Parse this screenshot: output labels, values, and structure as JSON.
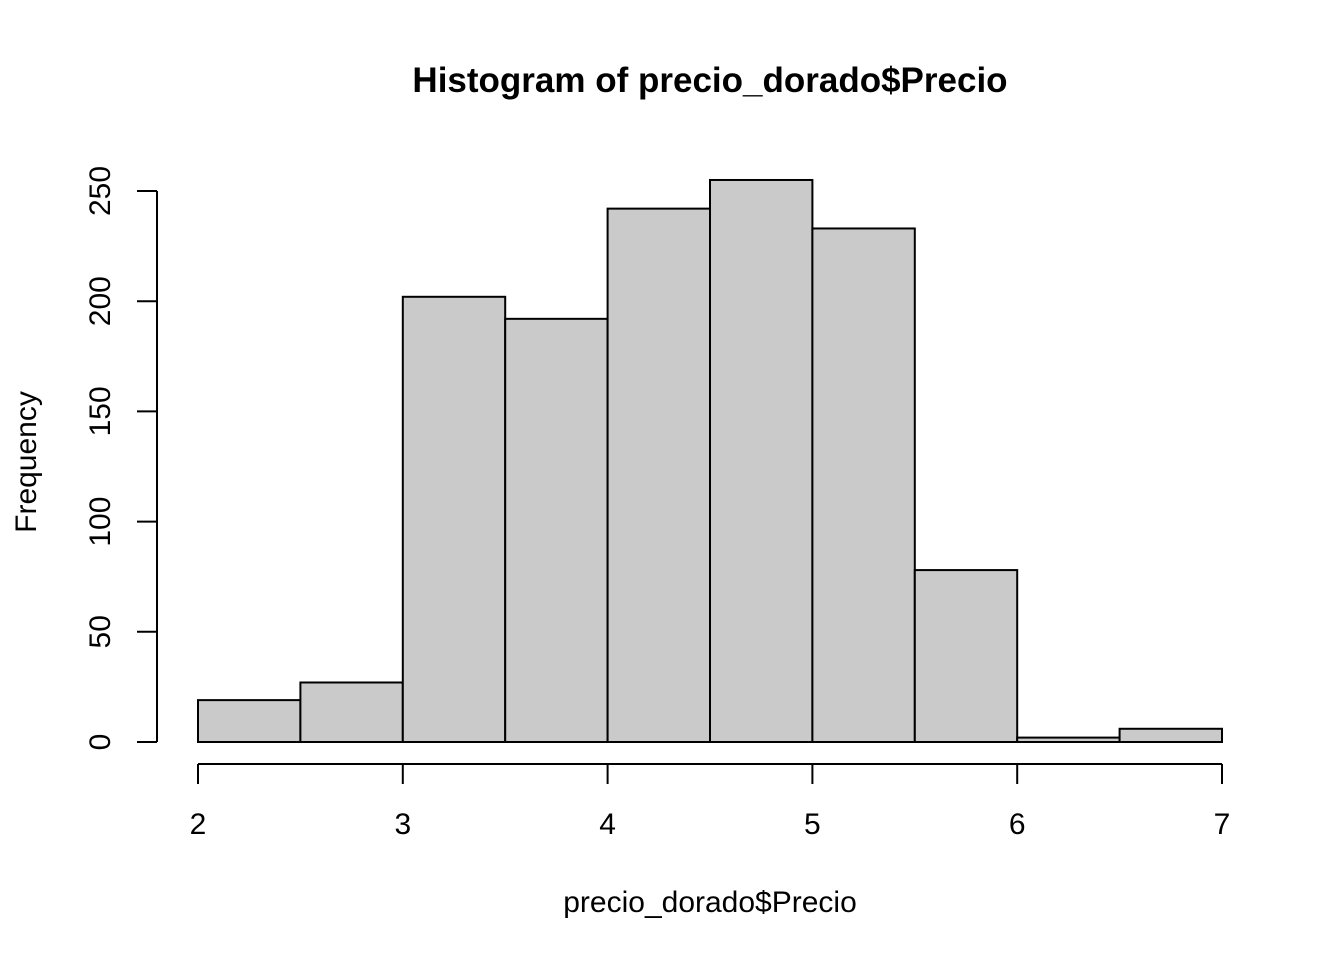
{
  "chart_data": {
    "type": "bar",
    "subtype": "histogram",
    "title": "Histogram of precio_dorado$Precio",
    "xlabel": "precio_dorado$Precio",
    "ylabel": "Frequency",
    "bins": [
      {
        "start": 2.0,
        "end": 2.5,
        "count": 19
      },
      {
        "start": 2.5,
        "end": 3.0,
        "count": 27
      },
      {
        "start": 3.0,
        "end": 3.5,
        "count": 202
      },
      {
        "start": 3.5,
        "end": 4.0,
        "count": 192
      },
      {
        "start": 4.0,
        "end": 4.5,
        "count": 242
      },
      {
        "start": 4.5,
        "end": 5.0,
        "count": 255
      },
      {
        "start": 5.0,
        "end": 5.5,
        "count": 233
      },
      {
        "start": 5.5,
        "end": 6.0,
        "count": 78
      },
      {
        "start": 6.0,
        "end": 6.5,
        "count": 2
      },
      {
        "start": 6.5,
        "end": 7.0,
        "count": 6
      }
    ],
    "xlim": [
      2,
      7
    ],
    "ylim": [
      0,
      250
    ],
    "x_ticks": [
      "2",
      "3",
      "4",
      "5",
      "6",
      "7"
    ],
    "y_ticks": [
      "0",
      "50",
      "100",
      "150",
      "200",
      "250"
    ],
    "grid": false,
    "legend": "none",
    "bar_fill": "#cacaca",
    "bar_stroke": "#000000"
  }
}
